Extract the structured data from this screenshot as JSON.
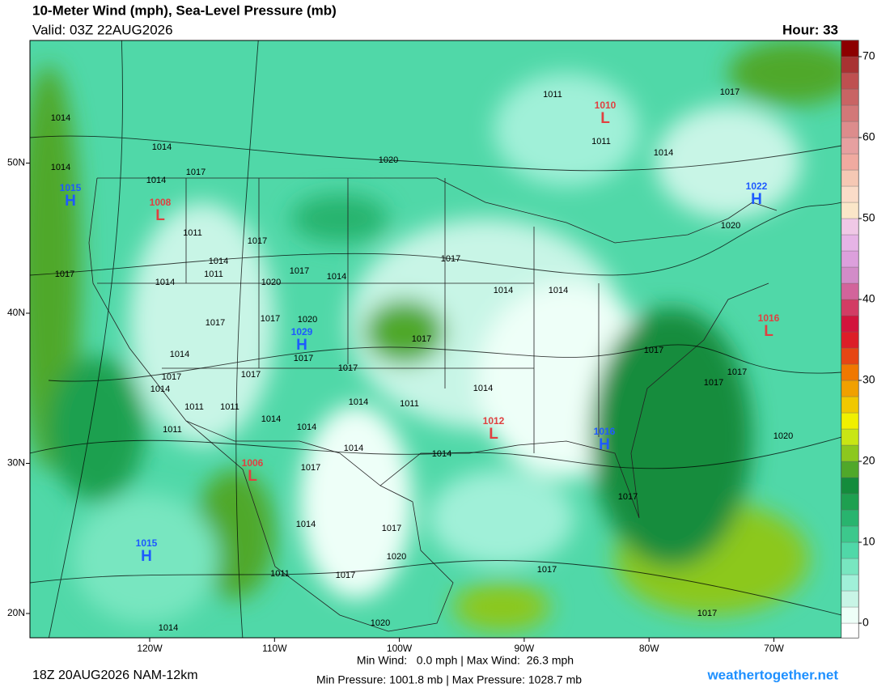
{
  "header": {
    "title": "10-Meter Wind (mph), Sea-Level Pressure (mb)",
    "valid": "Valid: 03Z 22AUG2026",
    "hour": "Hour: 33"
  },
  "footer": {
    "run": "18Z 20AUG2026 NAM-12km",
    "wind_stats": "Min Wind:   0.0 mph | Max Wind:  26.3 mph",
    "pressure_stats": "Min Pressure: 1001.8 mb | Max Pressure: 1028.7 mb",
    "site": "weathertogether.net"
  },
  "map": {
    "lonticks": [
      {
        "value": -120,
        "label": "120W"
      },
      {
        "value": -110,
        "label": "110W"
      },
      {
        "value": -100,
        "label": "100W"
      },
      {
        "value": -90,
        "label": "90W"
      },
      {
        "value": -80,
        "label": "80W"
      },
      {
        "value": -70,
        "label": "70W"
      }
    ],
    "latticks": [
      {
        "value": 50,
        "label": "50N"
      },
      {
        "value": 40,
        "label": "40N"
      },
      {
        "value": 30,
        "label": "30N"
      },
      {
        "value": 20,
        "label": "20N"
      }
    ],
    "centers": [
      {
        "symbol": "H",
        "value": 1015
      },
      {
        "symbol": "L",
        "value": 1008
      },
      {
        "symbol": "L",
        "value": 1010
      },
      {
        "symbol": "H",
        "value": 1022
      },
      {
        "symbol": "H",
        "value": 1029
      },
      {
        "symbol": "L",
        "value": 1016
      },
      {
        "symbol": "L",
        "value": 1012
      },
      {
        "symbol": "H",
        "value": 1016
      },
      {
        "symbol": "L",
        "value": 1006
      },
      {
        "symbol": "H",
        "value": 1015
      }
    ],
    "isobar_labels": [
      1011,
      1017,
      1014,
      1011,
      1014,
      1014,
      1020,
      1014,
      1014,
      1017,
      1020,
      1011,
      1017,
      1014,
      1011,
      1017,
      1017,
      1017,
      1014,
      1020,
      1014,
      1014,
      1014,
      1020,
      1017,
      1017,
      1017,
      1017,
      1014,
      1017,
      1017,
      1017,
      1017,
      1017,
      1017,
      1014,
      1014,
      1014,
      1011,
      1011,
      1011,
      1014,
      1014,
      1011,
      1020,
      1014,
      1014,
      1017,
      1017,
      1014,
      1017,
      1020,
      1017,
      1011,
      1017,
      1020,
      1014,
      1017
    ]
  },
  "colorbar": {
    "clim": [
      -1.8,
      72
    ],
    "ticks": [
      0,
      10,
      20,
      30,
      40,
      50,
      60,
      70
    ],
    "levels": [
      0,
      2,
      4,
      6,
      8,
      10,
      12,
      14,
      16,
      18,
      20,
      22,
      24,
      26,
      28,
      30,
      32,
      34,
      36,
      38,
      40,
      42,
      44,
      46,
      48,
      50,
      52,
      54,
      56,
      58,
      60,
      62,
      64,
      66,
      68,
      70,
      72
    ],
    "below_color": "#ffffff",
    "colors": [
      "#eefff8",
      "#c8f5e6",
      "#a0f0d8",
      "#78e6c0",
      "#50d8a8",
      "#3cc88c",
      "#28b46e",
      "#1ea050",
      "#148c3c",
      "#50a82a",
      "#8cc81e",
      "#c8e614",
      "#f0f000",
      "#f0c800",
      "#f0a000",
      "#f07800",
      "#e64614",
      "#dc1e28",
      "#d2143c",
      "#d23c64",
      "#d2649b",
      "#d28cc8",
      "#dca0dc",
      "#e6b4e6",
      "#f0c8e6",
      "#fae6c8",
      "#fadcc8",
      "#f5c8b4",
      "#f0aaa0",
      "#e6a0a0",
      "#dc8c8c",
      "#d27878",
      "#c86464",
      "#be5050",
      "#a83232",
      "#8c0000"
    ]
  }
}
